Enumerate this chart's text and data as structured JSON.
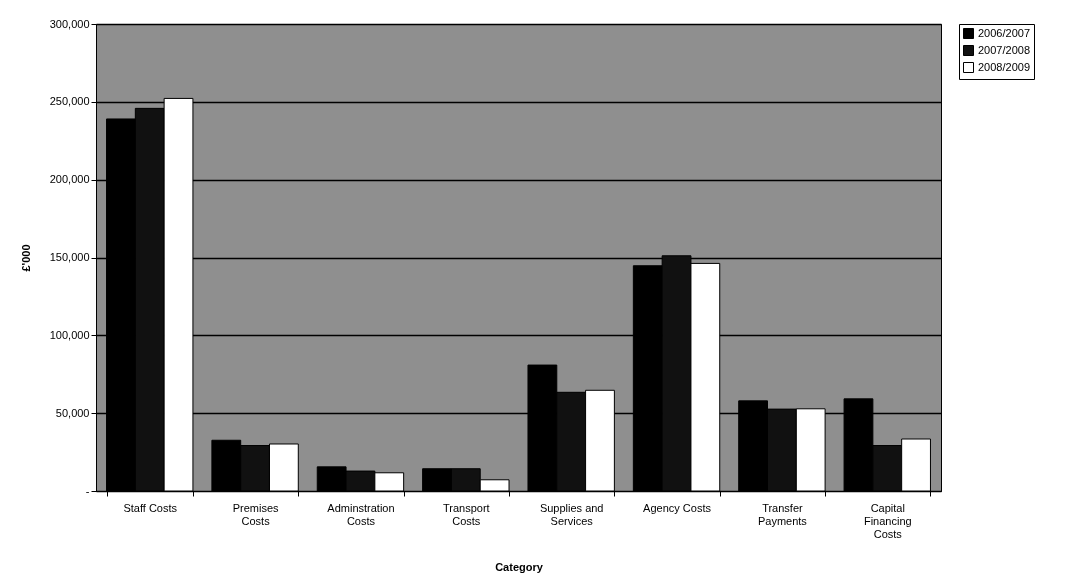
{
  "chart_data": {
    "type": "bar",
    "xlabel": "Category",
    "ylabel": "£'000",
    "categories": [
      "Staff Costs",
      "Premises Costs",
      "Adminstration Costs",
      "Transport Costs",
      "Supplies and Services",
      "Agency Costs",
      "Transfer Payments",
      "Capital Financing Costs"
    ],
    "series": [
      {
        "name": "2006/2007",
        "color": "#000000",
        "values": [
          239000,
          32600,
          15500,
          14300,
          80900,
          144700,
          57900,
          59200
        ]
      },
      {
        "name": "2007/2008",
        "color": "#111111",
        "values": [
          245800,
          29200,
          12800,
          14300,
          63400,
          151100,
          52600,
          29200
        ]
      },
      {
        "name": "2008/2009",
        "color": "#ffffff",
        "values": [
          252200,
          30200,
          11700,
          7200,
          64700,
          146200,
          52800,
          33400
        ]
      }
    ],
    "ylim": [
      0,
      300000
    ],
    "yticks": [
      {
        "value": 0,
        "label": "-"
      },
      {
        "value": 50000,
        "label": "50,000"
      },
      {
        "value": 100000,
        "label": "100,000"
      },
      {
        "value": 150000,
        "label": "150,000"
      },
      {
        "value": 200000,
        "label": "200,000"
      },
      {
        "value": 250000,
        "label": "250,000"
      },
      {
        "value": 300000,
        "label": "300,000"
      }
    ],
    "grid": "y",
    "legend": "right"
  }
}
